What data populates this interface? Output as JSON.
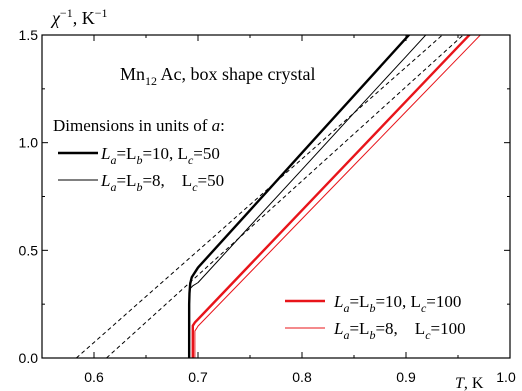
{
  "chart_data": {
    "type": "line",
    "ylabel": {
      "base": "χ",
      "exp": "−1",
      "unit_base": ", K",
      "unit_exp": "−1"
    },
    "xlabel": {
      "main": "T",
      "unit": ", K"
    },
    "xlim": [
      0.55,
      1.0
    ],
    "ylim": [
      0.0,
      1.5
    ],
    "xticks": [
      0.6,
      0.7,
      0.8,
      0.9,
      1.0
    ],
    "xtick_labels": [
      "0.6",
      "0.7",
      "0.8",
      "0.9",
      "1.0"
    ],
    "yticks": [
      0.0,
      0.5,
      1.0,
      1.5
    ],
    "ytick_labels": [
      "0.0",
      "0.5",
      "1.0",
      "1.5"
    ],
    "grid": false,
    "title": {
      "pre": "Mn",
      "sub": "12",
      "post": " Ac, box shape crystal"
    },
    "legend_header": {
      "text": "Dimensions in units of ",
      "italic": "a",
      "suffix": ":"
    },
    "series": [
      {
        "legend": {
          "pre": "L",
          "s1": "a",
          "mid": "=L",
          "s2": "b",
          "eq": "=10,  L",
          "s3": "c",
          "val": "=50"
        },
        "color": "#000000",
        "width": "thick",
        "x": [
          0.6915,
          0.6915,
          0.6918,
          0.6925,
          0.694,
          0.698,
          0.7,
          0.75,
          0.8,
          0.85,
          0.9,
          0.9365
        ],
        "y": [
          0.0,
          0.25,
          0.3,
          0.345,
          0.375,
          0.405,
          0.42,
          0.686,
          0.953,
          1.219,
          1.485,
          1.68
        ]
      },
      {
        "legend": {
          "pre": "L",
          "s1": "a",
          "mid": "=L",
          "s2": "b",
          "eq": "=8,    L",
          "s3": "c",
          "val": "=50"
        },
        "color": "#000000",
        "width": "thin",
        "x": [
          0.6915,
          0.6915,
          0.692,
          0.695,
          0.7,
          0.75,
          0.8,
          0.85,
          0.9,
          0.95
        ],
        "y": [
          0.0,
          0.3,
          0.32,
          0.335,
          0.35,
          0.613,
          0.875,
          1.138,
          1.4,
          1.663
        ]
      },
      {
        "legend": {
          "pre": "L",
          "s1": "a",
          "mid": "=L",
          "s2": "b",
          "eq": "=10,  L",
          "s3": "c",
          "val": "=100"
        },
        "color": "#e8141a",
        "width": "thick",
        "x": [
          0.695,
          0.695,
          0.697,
          0.7,
          0.75,
          0.8,
          0.85,
          0.9,
          0.95,
          1.0
        ],
        "y": [
          0.0,
          0.15,
          0.165,
          0.18,
          0.433,
          0.686,
          0.939,
          1.192,
          1.445,
          1.697
        ]
      },
      {
        "legend": {
          "pre": "L",
          "s1": "a",
          "mid": "=L",
          "s2": "b",
          "eq": "=8,    L",
          "s3": "c",
          "val": "=100"
        },
        "color": "#e8141a",
        "width": "thin",
        "x": [
          0.697,
          0.697,
          0.699,
          0.7,
          0.75,
          0.8,
          0.85,
          0.9,
          0.95,
          1.0
        ],
        "y": [
          0.0,
          0.125,
          0.14,
          0.148,
          0.397,
          0.646,
          0.895,
          1.144,
          1.393,
          1.642
        ]
      }
    ],
    "dashed_lines": [
      {
        "x": [
          0.583,
          0.935
        ],
        "y": [
          0.0,
          1.5
        ]
      },
      {
        "x": [
          0.612,
          0.955
        ],
        "y": [
          0.0,
          1.5
        ]
      }
    ]
  }
}
